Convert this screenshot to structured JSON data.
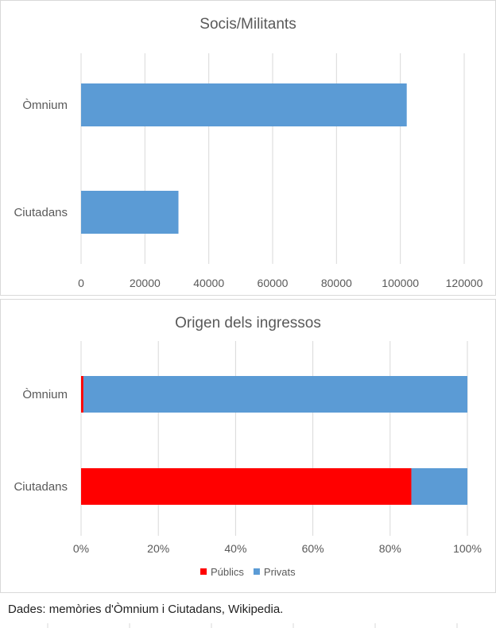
{
  "chart_data": [
    {
      "type": "bar",
      "orientation": "horizontal",
      "title": "Socis/Militants",
      "categories": [
        "Òmnium",
        "Ciutadans"
      ],
      "values": [
        102000,
        30500
      ],
      "xlim": [
        0,
        120000
      ],
      "ticks": [
        "0",
        "20000",
        "40000",
        "60000",
        "80000",
        "100000",
        "120000"
      ],
      "grid": true,
      "color": "#5b9bd5"
    },
    {
      "type": "bar",
      "orientation": "horizontal",
      "stacked": true,
      "percent": true,
      "title": "Origen dels ingressos",
      "categories": [
        "Òmnium",
        "Ciutadans"
      ],
      "series": [
        {
          "name": "Públics",
          "values": [
            0.6,
            85.5
          ],
          "color": "#ff0000"
        },
        {
          "name": "Privats",
          "values": [
            99.4,
            14.5
          ],
          "color": "#5b9bd5"
        }
      ],
      "xlim": [
        0,
        100
      ],
      "ticks": [
        "0%",
        "20%",
        "40%",
        "60%",
        "80%",
        "100%"
      ],
      "grid": true,
      "legend": "bottom"
    }
  ],
  "footer": "Dades: memòries d'Òmnium i Ciutadans, Wikipedia."
}
